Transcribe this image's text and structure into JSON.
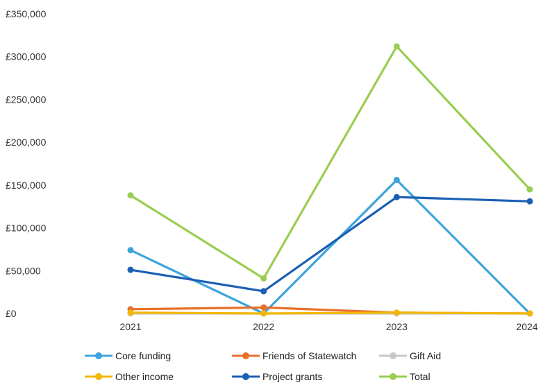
{
  "chart_data": {
    "type": "line",
    "title": "",
    "xlabel": "",
    "ylabel": "",
    "categories": [
      "2021",
      "2022",
      "2023",
      "2024"
    ],
    "y_tick_labels": [
      "£0",
      "£50,000",
      "£100,000",
      "£150,000",
      "£200,000",
      "£250,000",
      "£300,000",
      "£350,000"
    ],
    "ylim": [
      0,
      350000
    ],
    "grid": false,
    "legend_position": "bottom",
    "series": [
      {
        "name": "Core funding",
        "color": "#3ea3dc",
        "values": [
          74000,
          0,
          156000,
          0
        ]
      },
      {
        "name": "Friends of Statewatch",
        "color": "#e8702a",
        "values": [
          5000,
          7000,
          1000,
          0
        ]
      },
      {
        "name": "Gift Aid",
        "color": "#c8c8c8",
        "values": [
          0,
          0,
          0,
          0
        ]
      },
      {
        "name": "Other income",
        "color": "#f2b705",
        "values": [
          1000,
          0,
          1000,
          0
        ]
      },
      {
        "name": "Project grants",
        "color": "#1a5fb4",
        "values": [
          51000,
          26000,
          136000,
          131000
        ]
      },
      {
        "name": "Total",
        "color": "#9acd50",
        "values": [
          138000,
          41000,
          312000,
          145000
        ]
      }
    ]
  }
}
